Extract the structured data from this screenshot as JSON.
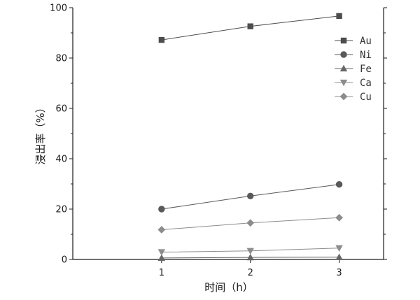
{
  "chart_data": {
    "type": "line",
    "xlabel": "时间（h）",
    "ylabel": "浸出率（%）",
    "x": [
      1,
      2,
      3
    ],
    "xlim": [
      0.0,
      3.5
    ],
    "ylim": [
      0,
      100
    ],
    "yticks": [
      0,
      20,
      40,
      60,
      80,
      100
    ],
    "grid": false,
    "legend_position": "top-right",
    "series": [
      {
        "name": "Au",
        "values": [
          87.2,
          92.6,
          96.7
        ],
        "marker": "square",
        "color": "#4d4d4d"
      },
      {
        "name": "Ni",
        "values": [
          20.0,
          25.2,
          29.8
        ],
        "marker": "circle",
        "color": "#595959"
      },
      {
        "name": "Fe",
        "values": [
          0.6,
          0.8,
          0.9
        ],
        "marker": "triangle-up",
        "color": "#666666"
      },
      {
        "name": "Ca",
        "values": [
          2.9,
          3.4,
          4.5
        ],
        "marker": "triangle-down",
        "color": "#8c8c8c"
      },
      {
        "name": "Cu",
        "values": [
          11.8,
          14.5,
          16.6
        ],
        "marker": "diamond",
        "color": "#8c8c8c"
      }
    ]
  }
}
